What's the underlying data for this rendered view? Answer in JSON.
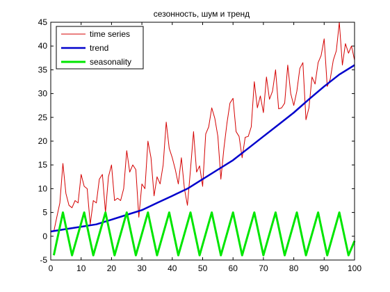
{
  "chart_data": {
    "type": "line",
    "title": "сезонность, шум и тренд",
    "xlabel": "",
    "ylabel": "",
    "xlim": [
      0,
      100
    ],
    "ylim": [
      -5,
      45
    ],
    "xticks": [
      0,
      10,
      20,
      30,
      40,
      50,
      60,
      70,
      80,
      90,
      100
    ],
    "yticks": [
      -5,
      0,
      5,
      10,
      15,
      20,
      25,
      30,
      35,
      40,
      45
    ],
    "grid": false,
    "legend_position": "top-left",
    "series": [
      {
        "name": "time series",
        "color": "#d40000",
        "x": [
          1,
          2,
          3,
          4,
          5,
          6,
          7,
          8,
          9,
          10,
          11,
          12,
          13,
          14,
          15,
          16,
          17,
          18,
          19,
          20,
          21,
          22,
          23,
          24,
          25,
          26,
          27,
          28,
          29,
          30,
          31,
          32,
          33,
          34,
          35,
          36,
          37,
          38,
          39,
          40,
          41,
          42,
          43,
          44,
          45,
          46,
          47,
          48,
          49,
          50,
          51,
          52,
          53,
          54,
          55,
          56,
          57,
          58,
          59,
          60,
          61,
          62,
          63,
          64,
          65,
          66,
          67,
          68,
          69,
          70,
          71,
          72,
          73,
          74,
          75,
          76,
          77,
          78,
          79,
          80,
          81,
          82,
          83,
          84,
          85,
          86,
          87,
          88,
          89,
          90,
          91,
          92,
          93,
          94,
          95,
          96,
          97,
          98,
          99,
          100
        ],
        "y": [
          1,
          4,
          7,
          15.3,
          9,
          6.5,
          6,
          7.5,
          7,
          13,
          10.5,
          10,
          2.5,
          7.5,
          7,
          12,
          13,
          5,
          12.5,
          15,
          7.5,
          8,
          7.5,
          10,
          18,
          13.5,
          15,
          14,
          4,
          11,
          10,
          20,
          16.5,
          8.5,
          12.5,
          11,
          15,
          24,
          18.5,
          16.5,
          14,
          11,
          16.5,
          10,
          6.5,
          14,
          22,
          13.5,
          14.8,
          10.5,
          21.5,
          23,
          27,
          24.8,
          21,
          12,
          18.5,
          23.8,
          28,
          29,
          22,
          21,
          16.5,
          20.8,
          21,
          23,
          32.5,
          27,
          29.5,
          26,
          33.5,
          28.8,
          30.5,
          35,
          26.8,
          27,
          28,
          36,
          30,
          27.5,
          30.5,
          35.3,
          36.5,
          24.5,
          27,
          33.5,
          32,
          36.5,
          38,
          41.5,
          31.5,
          33,
          37,
          39,
          45,
          36,
          40.5,
          38.5,
          40,
          37
        ]
      },
      {
        "name": "trend",
        "color": "#0000cc",
        "x": [
          0,
          5,
          10,
          15,
          20,
          25,
          30,
          35,
          40,
          45,
          50,
          55,
          60,
          65,
          70,
          75,
          80,
          85,
          90,
          95,
          100
        ],
        "y": [
          1,
          1.5,
          2,
          2.5,
          3.5,
          4.5,
          5.5,
          7,
          8.5,
          10,
          12,
          14,
          16,
          18.5,
          21,
          23.5,
          26,
          28.8,
          31.5,
          34,
          36
        ]
      },
      {
        "name": "seasonality",
        "color": "#00e600",
        "x": [
          1,
          4,
          7,
          11,
          14,
          18,
          21,
          25,
          28,
          32,
          35,
          39,
          42,
          46,
          49,
          53,
          56,
          60,
          63,
          67,
          70,
          74,
          77,
          81,
          84,
          88,
          91,
          95,
          98,
          100
        ],
        "y": [
          -4,
          5,
          -4,
          5,
          -4,
          5,
          -4,
          5,
          -4,
          5,
          -4,
          5,
          -4,
          5,
          -4,
          5,
          -4,
          5,
          -4,
          5,
          -4,
          5,
          -4,
          5,
          -4,
          5,
          -4,
          5,
          -4,
          -1
        ]
      }
    ]
  }
}
